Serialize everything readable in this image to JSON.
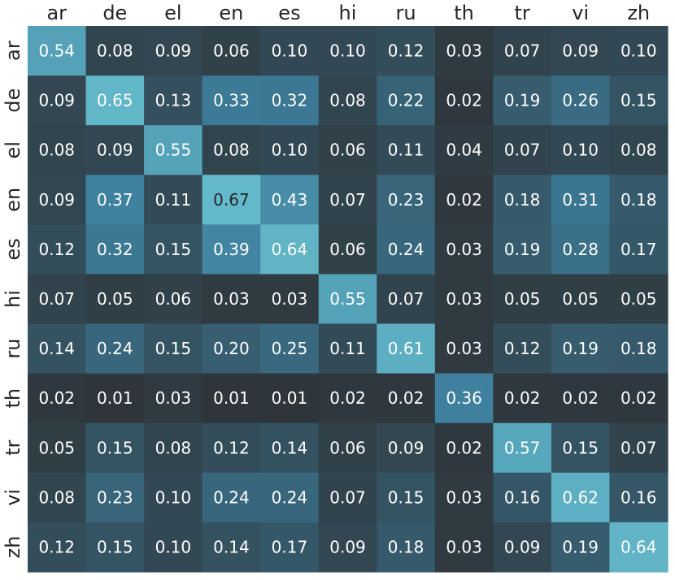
{
  "chart_data": {
    "type": "heatmap",
    "x_categories": [
      "ar",
      "de",
      "el",
      "en",
      "es",
      "hi",
      "ru",
      "th",
      "tr",
      "vi",
      "zh"
    ],
    "y_categories": [
      "ar",
      "de",
      "el",
      "en",
      "es",
      "hi",
      "ru",
      "th",
      "tr",
      "vi",
      "zh"
    ],
    "x_tick_position": "top",
    "values": [
      [
        0.54,
        0.08,
        0.09,
        0.06,
        0.1,
        0.1,
        0.12,
        0.03,
        0.07,
        0.09,
        0.1
      ],
      [
        0.09,
        0.65,
        0.13,
        0.33,
        0.32,
        0.08,
        0.22,
        0.02,
        0.19,
        0.26,
        0.15
      ],
      [
        0.08,
        0.09,
        0.55,
        0.08,
        0.1,
        0.06,
        0.11,
        0.04,
        0.07,
        0.1,
        0.08
      ],
      [
        0.09,
        0.37,
        0.11,
        0.67,
        0.43,
        0.07,
        0.23,
        0.02,
        0.18,
        0.31,
        0.18
      ],
      [
        0.12,
        0.32,
        0.15,
        0.39,
        0.64,
        0.06,
        0.24,
        0.03,
        0.19,
        0.28,
        0.17
      ],
      [
        0.07,
        0.05,
        0.06,
        0.03,
        0.03,
        0.55,
        0.07,
        0.03,
        0.05,
        0.05,
        0.05
      ],
      [
        0.14,
        0.24,
        0.15,
        0.2,
        0.25,
        0.11,
        0.61,
        0.03,
        0.12,
        0.19,
        0.18
      ],
      [
        0.02,
        0.01,
        0.03,
        0.01,
        0.01,
        0.02,
        0.02,
        0.36,
        0.02,
        0.02,
        0.02
      ],
      [
        0.05,
        0.15,
        0.08,
        0.12,
        0.14,
        0.06,
        0.09,
        0.02,
        0.57,
        0.15,
        0.07
      ],
      [
        0.08,
        0.23,
        0.1,
        0.24,
        0.24,
        0.07,
        0.15,
        0.03,
        0.16,
        0.62,
        0.16
      ],
      [
        0.12,
        0.15,
        0.1,
        0.14,
        0.17,
        0.09,
        0.18,
        0.03,
        0.09,
        0.19,
        0.64
      ]
    ],
    "value_range": [
      0.0,
      0.7
    ],
    "colormap": {
      "low": "#2e3438",
      "mid": "#3d7e9c",
      "high": "#67bfcf"
    },
    "annotated": true,
    "grid": false
  }
}
